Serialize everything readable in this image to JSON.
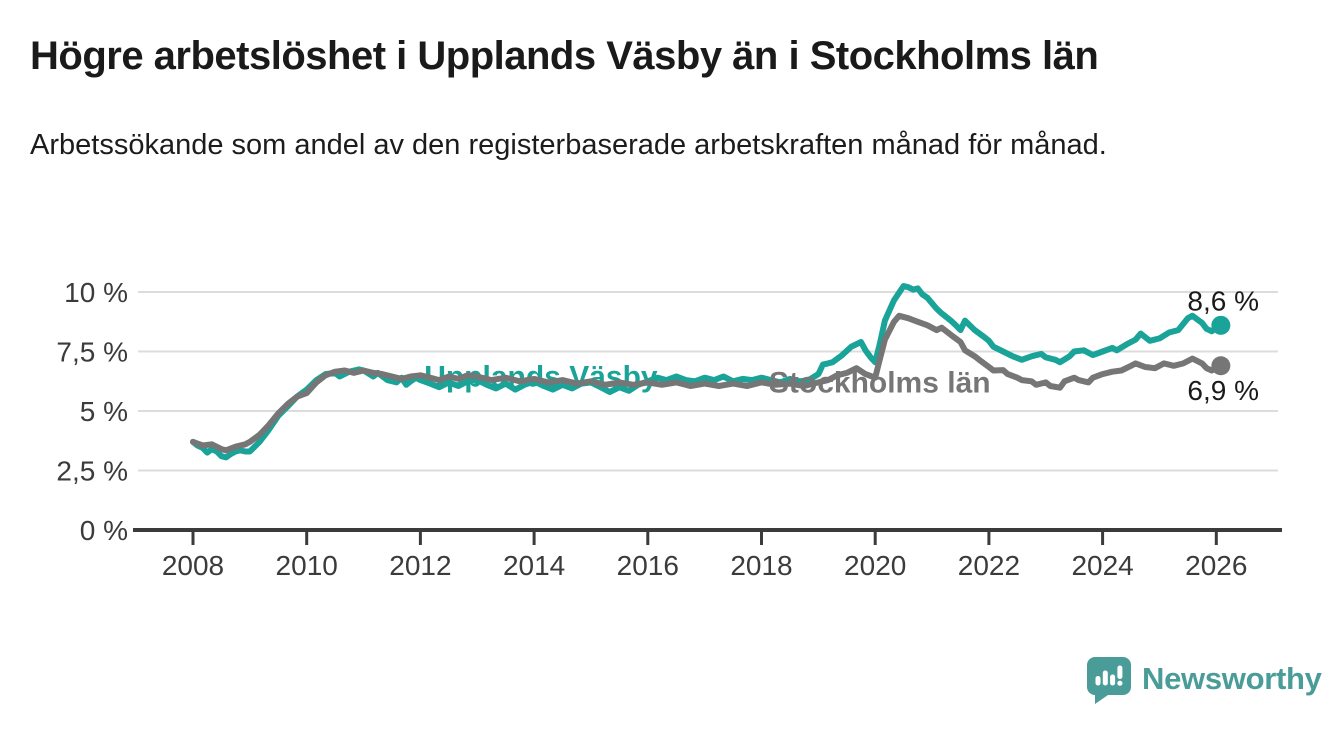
{
  "header": {
    "title": "Högre arbetslöshet i Upplands Väsby än i Stockholms län",
    "subtitle": "Arbetssökande som andel av den registerbaserade arbetskraften månad för månad."
  },
  "branding": {
    "logo_text": "Newsworthy",
    "logo_color": "#4a9c98",
    "logo_icon": "bar-chart-speech-bubble"
  },
  "chart_data": {
    "type": "line",
    "title": "Högre arbetslöshet i Upplands Väsby än i Stockholms län",
    "subtitle": "Arbetssökande som andel av den registerbaserade arbetskraften månad för månad.",
    "unit": "%",
    "grid": "horizontal-only",
    "legend_position": "inline-labels-on-lines",
    "xlim": [
      2007.3,
      2027.0
    ],
    "ylim": [
      0,
      10.5
    ],
    "x_axis": {
      "ticks": [
        2008,
        2010,
        2012,
        2014,
        2016,
        2018,
        2020,
        2022,
        2024,
        2026
      ],
      "tick_labels": [
        "2008",
        "2010",
        "2012",
        "2014",
        "2016",
        "2018",
        "2020",
        "2022",
        "2024",
        "2026"
      ]
    },
    "y_axis": {
      "ticks": [
        {
          "value": 10,
          "label": "10 %"
        },
        {
          "value": 7.5,
          "label": "7,5 %"
        },
        {
          "value": 5,
          "label": "5 %"
        },
        {
          "value": 2.5,
          "label": "2,5 %"
        },
        {
          "value": 0,
          "label": "0 %"
        }
      ]
    },
    "colors": {
      "grid": "#dcdcdc",
      "axis": "#3b3b3b",
      "axis_text": "#3b3b3b",
      "end_label_text": "#1a1a1a"
    },
    "series": [
      {
        "name": "Upplands Väsby",
        "color": "#1aa398",
        "end_label": "8,6 %",
        "end_value": 8.6,
        "end_label_side": "above",
        "label_at": [
          2014.12,
          6.5
        ],
        "points": [
          [
            2008.0,
            3.7
          ],
          [
            2008.08,
            3.55
          ],
          [
            2008.17,
            3.45
          ],
          [
            2008.25,
            3.25
          ],
          [
            2008.33,
            3.4
          ],
          [
            2008.42,
            3.3
          ],
          [
            2008.5,
            3.1
          ],
          [
            2008.58,
            3.05
          ],
          [
            2008.67,
            3.2
          ],
          [
            2008.75,
            3.3
          ],
          [
            2008.83,
            3.35
          ],
          [
            2008.92,
            3.3
          ],
          [
            2009.0,
            3.3
          ],
          [
            2009.17,
            3.7
          ],
          [
            2009.33,
            4.2
          ],
          [
            2009.5,
            4.8
          ],
          [
            2009.67,
            5.2
          ],
          [
            2009.83,
            5.6
          ],
          [
            2010.0,
            5.9
          ],
          [
            2010.17,
            6.3
          ],
          [
            2010.33,
            6.55
          ],
          [
            2010.5,
            6.6
          ],
          [
            2010.58,
            6.45
          ],
          [
            2010.75,
            6.65
          ],
          [
            2010.92,
            6.75
          ],
          [
            2011.0,
            6.7
          ],
          [
            2011.17,
            6.45
          ],
          [
            2011.25,
            6.6
          ],
          [
            2011.42,
            6.3
          ],
          [
            2011.58,
            6.2
          ],
          [
            2011.67,
            6.4
          ],
          [
            2011.75,
            6.1
          ],
          [
            2011.83,
            6.25
          ],
          [
            2011.92,
            6.4
          ],
          [
            2012.0,
            6.3
          ],
          [
            2012.17,
            6.15
          ],
          [
            2012.33,
            6.0
          ],
          [
            2012.5,
            6.2
          ],
          [
            2012.67,
            6.05
          ],
          [
            2012.83,
            6.25
          ],
          [
            2013.0,
            6.3
          ],
          [
            2013.17,
            6.1
          ],
          [
            2013.33,
            5.95
          ],
          [
            2013.5,
            6.15
          ],
          [
            2013.67,
            5.9
          ],
          [
            2013.83,
            6.1
          ],
          [
            2014.0,
            6.25
          ],
          [
            2014.17,
            6.05
          ],
          [
            2014.33,
            5.9
          ],
          [
            2014.5,
            6.1
          ],
          [
            2014.67,
            5.95
          ],
          [
            2014.83,
            6.15
          ],
          [
            2015.0,
            6.2
          ],
          [
            2015.17,
            6.0
          ],
          [
            2015.33,
            5.8
          ],
          [
            2015.5,
            6.0
          ],
          [
            2015.67,
            5.85
          ],
          [
            2015.83,
            6.1
          ],
          [
            2016.0,
            6.25
          ],
          [
            2016.17,
            6.4
          ],
          [
            2016.33,
            6.3
          ],
          [
            2016.5,
            6.45
          ],
          [
            2016.67,
            6.3
          ],
          [
            2016.83,
            6.25
          ],
          [
            2017.0,
            6.4
          ],
          [
            2017.17,
            6.3
          ],
          [
            2017.33,
            6.45
          ],
          [
            2017.5,
            6.25
          ],
          [
            2017.67,
            6.35
          ],
          [
            2017.83,
            6.3
          ],
          [
            2018.0,
            6.4
          ],
          [
            2018.17,
            6.3
          ],
          [
            2018.33,
            6.2
          ],
          [
            2018.5,
            6.35
          ],
          [
            2018.67,
            6.25
          ],
          [
            2018.83,
            6.3
          ],
          [
            2019.0,
            6.55
          ],
          [
            2019.08,
            6.95
          ],
          [
            2019.17,
            7.0
          ],
          [
            2019.25,
            7.05
          ],
          [
            2019.42,
            7.35
          ],
          [
            2019.58,
            7.7
          ],
          [
            2019.75,
            7.9
          ],
          [
            2019.83,
            7.55
          ],
          [
            2019.92,
            7.25
          ],
          [
            2020.0,
            7.05
          ],
          [
            2020.08,
            7.8
          ],
          [
            2020.17,
            8.8
          ],
          [
            2020.33,
            9.65
          ],
          [
            2020.5,
            10.25
          ],
          [
            2020.58,
            10.2
          ],
          [
            2020.67,
            10.1
          ],
          [
            2020.75,
            10.15
          ],
          [
            2020.83,
            9.9
          ],
          [
            2020.92,
            9.75
          ],
          [
            2021.08,
            9.3
          ],
          [
            2021.17,
            9.1
          ],
          [
            2021.33,
            8.8
          ],
          [
            2021.42,
            8.6
          ],
          [
            2021.5,
            8.4
          ],
          [
            2021.58,
            8.8
          ],
          [
            2021.75,
            8.4
          ],
          [
            2021.92,
            8.1
          ],
          [
            2022.0,
            7.95
          ],
          [
            2022.08,
            7.7
          ],
          [
            2022.25,
            7.5
          ],
          [
            2022.42,
            7.3
          ],
          [
            2022.58,
            7.15
          ],
          [
            2022.75,
            7.3
          ],
          [
            2022.92,
            7.4
          ],
          [
            2023.0,
            7.25
          ],
          [
            2023.17,
            7.15
          ],
          [
            2023.25,
            7.05
          ],
          [
            2023.42,
            7.3
          ],
          [
            2023.5,
            7.5
          ],
          [
            2023.67,
            7.55
          ],
          [
            2023.83,
            7.35
          ],
          [
            2024.0,
            7.5
          ],
          [
            2024.17,
            7.65
          ],
          [
            2024.25,
            7.55
          ],
          [
            2024.42,
            7.8
          ],
          [
            2024.58,
            8.0
          ],
          [
            2024.67,
            8.25
          ],
          [
            2024.83,
            7.95
          ],
          [
            2025.0,
            8.05
          ],
          [
            2025.17,
            8.3
          ],
          [
            2025.33,
            8.4
          ],
          [
            2025.5,
            8.9
          ],
          [
            2025.58,
            9.0
          ],
          [
            2025.75,
            8.7
          ],
          [
            2025.83,
            8.45
          ],
          [
            2025.92,
            8.35
          ],
          [
            2026.0,
            8.5
          ],
          [
            2026.08,
            8.6
          ]
        ]
      },
      {
        "name": "Stockholms län",
        "color": "#767676",
        "end_label": "6,9 %",
        "end_value": 6.9,
        "end_label_side": "below",
        "label_at": [
          2020.08,
          6.25
        ],
        "points": [
          [
            2008.0,
            3.7
          ],
          [
            2008.17,
            3.55
          ],
          [
            2008.33,
            3.6
          ],
          [
            2008.5,
            3.4
          ],
          [
            2008.58,
            3.35
          ],
          [
            2008.75,
            3.5
          ],
          [
            2008.92,
            3.6
          ],
          [
            2009.0,
            3.7
          ],
          [
            2009.17,
            4.0
          ],
          [
            2009.33,
            4.4
          ],
          [
            2009.5,
            4.9
          ],
          [
            2009.67,
            5.3
          ],
          [
            2009.83,
            5.6
          ],
          [
            2010.0,
            5.75
          ],
          [
            2010.17,
            6.2
          ],
          [
            2010.33,
            6.5
          ],
          [
            2010.5,
            6.65
          ],
          [
            2010.67,
            6.7
          ],
          [
            2010.83,
            6.6
          ],
          [
            2011.0,
            6.7
          ],
          [
            2011.17,
            6.6
          ],
          [
            2011.33,
            6.55
          ],
          [
            2011.5,
            6.45
          ],
          [
            2011.67,
            6.35
          ],
          [
            2011.83,
            6.45
          ],
          [
            2012.0,
            6.5
          ],
          [
            2012.17,
            6.4
          ],
          [
            2012.33,
            6.3
          ],
          [
            2012.5,
            6.45
          ],
          [
            2012.67,
            6.35
          ],
          [
            2012.83,
            6.5
          ],
          [
            2013.0,
            6.45
          ],
          [
            2013.25,
            6.3
          ],
          [
            2013.5,
            6.4
          ],
          [
            2013.75,
            6.25
          ],
          [
            2014.0,
            6.35
          ],
          [
            2014.25,
            6.2
          ],
          [
            2014.5,
            6.3
          ],
          [
            2014.75,
            6.15
          ],
          [
            2015.0,
            6.25
          ],
          [
            2015.25,
            6.1
          ],
          [
            2015.5,
            6.2
          ],
          [
            2015.75,
            6.1
          ],
          [
            2016.0,
            6.2
          ],
          [
            2016.25,
            6.1
          ],
          [
            2016.5,
            6.2
          ],
          [
            2016.75,
            6.05
          ],
          [
            2017.0,
            6.15
          ],
          [
            2017.25,
            6.05
          ],
          [
            2017.5,
            6.15
          ],
          [
            2017.75,
            6.05
          ],
          [
            2018.0,
            6.2
          ],
          [
            2018.25,
            6.1
          ],
          [
            2018.5,
            6.15
          ],
          [
            2018.75,
            6.05
          ],
          [
            2019.0,
            6.2
          ],
          [
            2019.17,
            6.3
          ],
          [
            2019.33,
            6.5
          ],
          [
            2019.5,
            6.6
          ],
          [
            2019.67,
            6.8
          ],
          [
            2019.83,
            6.55
          ],
          [
            2020.0,
            6.4
          ],
          [
            2020.08,
            7.15
          ],
          [
            2020.17,
            8.0
          ],
          [
            2020.33,
            8.75
          ],
          [
            2020.42,
            9.0
          ],
          [
            2020.58,
            8.9
          ],
          [
            2020.75,
            8.75
          ],
          [
            2020.92,
            8.6
          ],
          [
            2021.08,
            8.4
          ],
          [
            2021.17,
            8.5
          ],
          [
            2021.33,
            8.2
          ],
          [
            2021.5,
            7.9
          ],
          [
            2021.58,
            7.55
          ],
          [
            2021.75,
            7.3
          ],
          [
            2021.83,
            7.15
          ],
          [
            2022.0,
            6.85
          ],
          [
            2022.08,
            6.7
          ],
          [
            2022.25,
            6.72
          ],
          [
            2022.33,
            6.55
          ],
          [
            2022.5,
            6.4
          ],
          [
            2022.58,
            6.3
          ],
          [
            2022.75,
            6.25
          ],
          [
            2022.83,
            6.1
          ],
          [
            2023.0,
            6.2
          ],
          [
            2023.08,
            6.05
          ],
          [
            2023.25,
            5.98
          ],
          [
            2023.33,
            6.25
          ],
          [
            2023.5,
            6.4
          ],
          [
            2023.58,
            6.3
          ],
          [
            2023.75,
            6.2
          ],
          [
            2023.83,
            6.4
          ],
          [
            2024.0,
            6.55
          ],
          [
            2024.17,
            6.65
          ],
          [
            2024.33,
            6.7
          ],
          [
            2024.5,
            6.9
          ],
          [
            2024.58,
            7.0
          ],
          [
            2024.75,
            6.85
          ],
          [
            2024.92,
            6.8
          ],
          [
            2025.08,
            7.0
          ],
          [
            2025.25,
            6.9
          ],
          [
            2025.42,
            7.0
          ],
          [
            2025.58,
            7.2
          ],
          [
            2025.75,
            7.0
          ],
          [
            2025.83,
            6.8
          ],
          [
            2025.92,
            6.7
          ],
          [
            2026.0,
            6.8
          ],
          [
            2026.08,
            6.9
          ]
        ]
      }
    ]
  }
}
